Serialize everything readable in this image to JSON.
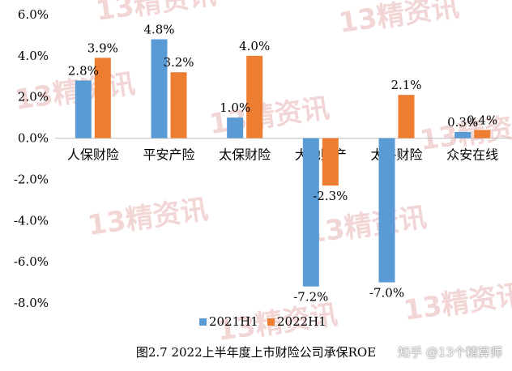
{
  "chart_data": {
    "type": "bar",
    "categories": [
      "人保财险",
      "平安产险",
      "太保财险",
      "大地财产",
      "太平财险",
      "众安在线"
    ],
    "series": [
      {
        "name": "2021H1",
        "values": [
          2.8,
          4.8,
          1.0,
          -7.2,
          -7.0,
          0.3
        ],
        "labels": [
          "2.8%",
          "4.8%",
          "1.0%",
          "-7.2%",
          "-7.0%",
          "0.3%"
        ],
        "color": "#5b9bd5"
      },
      {
        "name": "2022H1",
        "values": [
          3.9,
          3.2,
          4.0,
          -2.3,
          2.1,
          0.4
        ],
        "labels": [
          "3.9%",
          "3.2%",
          "4.0%",
          "-2.3%",
          "2.1%",
          "0.4%"
        ],
        "color": "#ed7d31"
      }
    ],
    "yticks": [
      "6.0%",
      "4.0%",
      "2.0%",
      "0.0%",
      "-2.0%",
      "-4.0%",
      "-6.0%",
      "-8.0%"
    ],
    "ylim": [
      -8,
      6
    ],
    "ytick_step": 2,
    "grid": false,
    "legend": "bottom",
    "title": "图2.7  2022上半年度上市财险公司承保ROE"
  },
  "watermark": "13精资讯",
  "source_mark": "知乎 @13个精算师"
}
